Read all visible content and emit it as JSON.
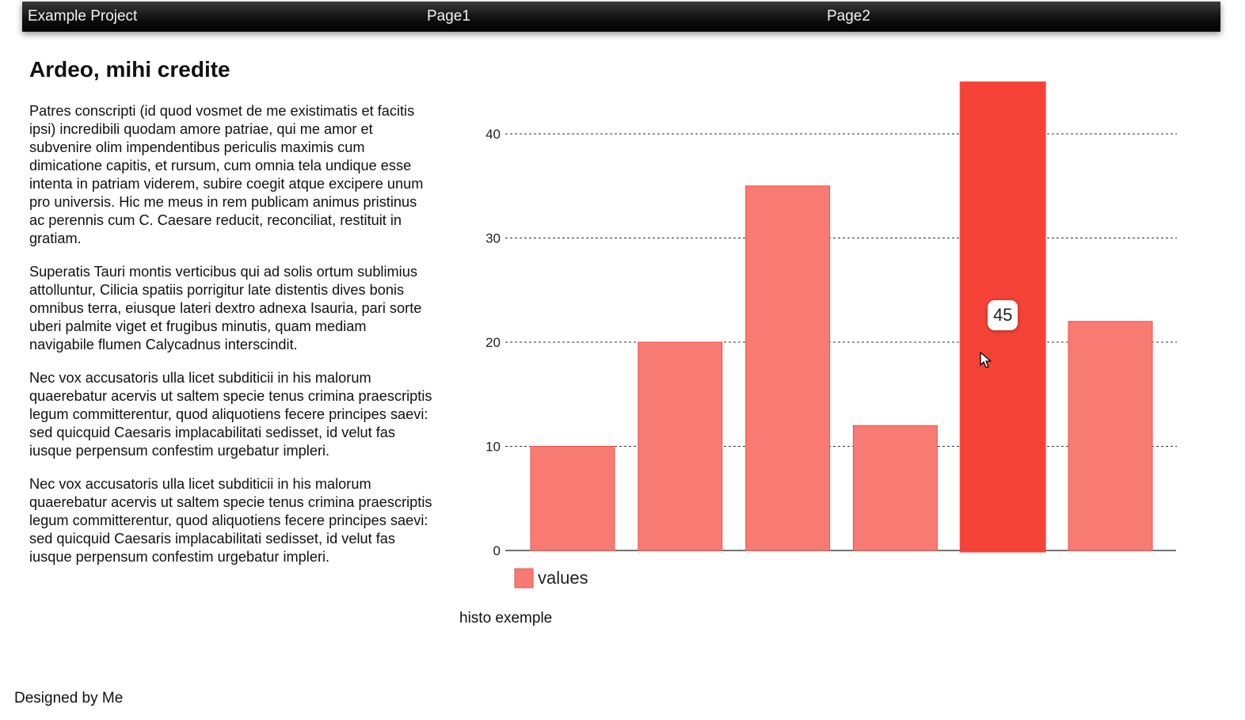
{
  "nav": {
    "brand": "Example Project",
    "links": [
      "Page1",
      "Page2"
    ]
  },
  "article": {
    "title": "Ardeo, mihi credite",
    "paragraphs": [
      "Patres conscripti (id quod vosmet de me existimatis et facitis ipsi) incredibili quodam amore patriae, qui me amor et subvenire olim impendentibus periculis maximis cum dimicatione capitis, et rursum, cum omnia tela undique esse intenta in patriam viderem, subire coegit atque excipere unum pro universis. Hic me meus in rem publicam animus pristinus ac perennis cum C. Caesare reducit, reconciliat, restituit in gratiam.",
      "Superatis Tauri montis verticibus qui ad solis ortum sublimius attolluntur, Cilicia spatiis porrigitur late distentis dives bonis omnibus terra, eiusque lateri dextro adnexa Isauria, pari sorte uberi palmite viget et frugibus minutis, quam mediam navigabile flumen Calycadnus interscindit.",
      "Nec vox accusatoris ulla licet subditicii in his malorum quaerebatur acervis ut saltem specie tenus crimina praescriptis legum committerentur, quod aliquotiens fecere principes saevi: sed quicquid Caesaris implacabilitati sedisset, id velut fas iusque perpensum confestim urgebatur impleri.",
      "Nec vox accusatoris ulla licet subditicii in his malorum quaerebatur acervis ut saltem specie tenus crimina praescriptis legum committerentur, quod aliquotiens fecere principes saevi: sed quicquid Caesaris implacabilitati sedisset, id velut fas iusque perpensum confestim urgebatur impleri."
    ]
  },
  "chart_data": {
    "type": "bar",
    "categories": [
      "",
      "",
      "",
      "",
      "",
      ""
    ],
    "series": [
      {
        "name": "values",
        "values": [
          10,
          20,
          35,
          12,
          45,
          22
        ]
      }
    ],
    "ylim": [
      0,
      45
    ],
    "yticks": [
      0,
      10,
      20,
      30,
      40
    ],
    "grid": true,
    "legend": "bottom-left",
    "tooltip": {
      "index": 4,
      "text": "45"
    },
    "colors": {
      "bar": "#f77b72",
      "bar_active": "#f44336",
      "bar_stroke": "#ef5350"
    }
  },
  "chart_caption": "histo exemple",
  "footer": "Designed by Me"
}
